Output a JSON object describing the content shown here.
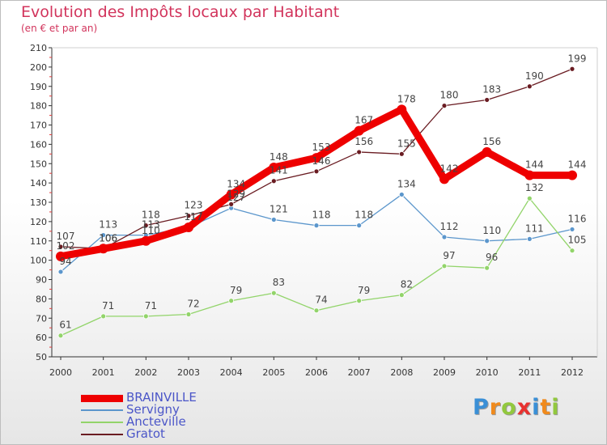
{
  "chart_data": {
    "type": "line",
    "title": "Evolution des Impôts locaux par Habitant",
    "subtitle": "(en € et par an)",
    "xlabel": "",
    "ylabel": "",
    "x": [
      "2000",
      "2001",
      "2002",
      "2003",
      "2004",
      "2005",
      "2006",
      "2007",
      "2008",
      "2009",
      "2010",
      "2011",
      "2012"
    ],
    "ylim": [
      50,
      210
    ],
    "yticks": [
      50,
      60,
      70,
      80,
      90,
      100,
      110,
      120,
      130,
      140,
      150,
      160,
      170,
      180,
      190,
      200,
      210
    ],
    "grid": false,
    "legend_position": "bottom-left",
    "series": [
      {
        "name": "BRAINVILLE",
        "color": "#ee0000",
        "values": [
          102,
          106,
          110,
          117,
          134,
          148,
          153,
          167,
          178,
          142,
          156,
          144,
          144
        ]
      },
      {
        "name": "Servigny",
        "color": "#5b96cc",
        "values": [
          94,
          113,
          113,
          117,
          127,
          121,
          118,
          118,
          134,
          112,
          110,
          111,
          116
        ]
      },
      {
        "name": "Ancteville",
        "color": "#92d46a",
        "values": [
          61,
          71,
          71,
          72,
          79,
          83,
          74,
          79,
          82,
          97,
          96,
          132,
          105
        ]
      },
      {
        "name": "Gratot",
        "color": "#6a1c22",
        "values": [
          107,
          106,
          118,
          123,
          129,
          141,
          146,
          156,
          155,
          180,
          183,
          190,
          199
        ]
      }
    ],
    "data_labels": [
      {
        "x": "2000",
        "y": 107,
        "text": "107"
      },
      {
        "x": "2000",
        "y": 102,
        "text": "102"
      },
      {
        "x": "2000",
        "y": 94,
        "text": "94"
      },
      {
        "x": "2000",
        "y": 61,
        "text": "61"
      },
      {
        "x": "2001",
        "y": 113,
        "text": "113"
      },
      {
        "x": "2001",
        "y": 106,
        "text": "106"
      },
      {
        "x": "2001",
        "y": 106,
        "text": "106"
      },
      {
        "x": "2001",
        "y": 71,
        "text": "71"
      },
      {
        "x": "2002",
        "y": 118,
        "text": "118"
      },
      {
        "x": "2002",
        "y": 113,
        "text": "113"
      },
      {
        "x": "2002",
        "y": 110,
        "text": "110"
      },
      {
        "x": "2002",
        "y": 71,
        "text": "71"
      },
      {
        "x": "2003",
        "y": 123,
        "text": "123"
      },
      {
        "x": "2003",
        "y": 117,
        "text": "117"
      },
      {
        "x": "2003",
        "y": 117,
        "text": "117"
      },
      {
        "x": "2003",
        "y": 72,
        "text": "72"
      },
      {
        "x": "2004",
        "y": 134,
        "text": "134"
      },
      {
        "x": "2004",
        "y": 129,
        "text": "129"
      },
      {
        "x": "2004",
        "y": 127,
        "text": "127"
      },
      {
        "x": "2004",
        "y": 79,
        "text": "79"
      },
      {
        "x": "2005",
        "y": 148,
        "text": "148"
      },
      {
        "x": "2005",
        "y": 141,
        "text": "141"
      },
      {
        "x": "2005",
        "y": 121,
        "text": "121"
      },
      {
        "x": "2005",
        "y": 83,
        "text": "83"
      },
      {
        "x": "2006",
        "y": 153,
        "text": "153"
      },
      {
        "x": "2006",
        "y": 146,
        "text": "146"
      },
      {
        "x": "2006",
        "y": 118,
        "text": "118"
      },
      {
        "x": "2006",
        "y": 74,
        "text": "74"
      },
      {
        "x": "2007",
        "y": 167,
        "text": "167"
      },
      {
        "x": "2007",
        "y": 156,
        "text": "156"
      },
      {
        "x": "2007",
        "y": 118,
        "text": "118"
      },
      {
        "x": "2007",
        "y": 79,
        "text": "79"
      },
      {
        "x": "2008",
        "y": 178,
        "text": "178"
      },
      {
        "x": "2008",
        "y": 155,
        "text": "155"
      },
      {
        "x": "2008",
        "y": 134,
        "text": "134"
      },
      {
        "x": "2008",
        "y": 82,
        "text": "82"
      },
      {
        "x": "2009",
        "y": 180,
        "text": "180"
      },
      {
        "x": "2009",
        "y": 142,
        "text": "142"
      },
      {
        "x": "2009",
        "y": 112,
        "text": "112"
      },
      {
        "x": "2009",
        "y": 97,
        "text": "97"
      },
      {
        "x": "2010",
        "y": 183,
        "text": "183"
      },
      {
        "x": "2010",
        "y": 156,
        "text": "156"
      },
      {
        "x": "2010",
        "y": 110,
        "text": "110"
      },
      {
        "x": "2010",
        "y": 96,
        "text": "96"
      },
      {
        "x": "2011",
        "y": 190,
        "text": "190"
      },
      {
        "x": "2011",
        "y": 144,
        "text": "144"
      },
      {
        "x": "2011",
        "y": 132,
        "text": "132"
      },
      {
        "x": "2011",
        "y": 111,
        "text": "111"
      },
      {
        "x": "2012",
        "y": 199,
        "text": "199"
      },
      {
        "x": "2012",
        "y": 144,
        "text": "144"
      },
      {
        "x": "2012",
        "y": 116,
        "text": "116"
      },
      {
        "x": "2012",
        "y": 105,
        "text": "105"
      }
    ]
  },
  "logo": {
    "text": "Proxiti",
    "letters": [
      {
        "ch": "P",
        "color": "#3a8fd6"
      },
      {
        "ch": "r",
        "color": "#f08a1c"
      },
      {
        "ch": "o",
        "color": "#92c83e"
      },
      {
        "ch": "x",
        "color": "#e8312f"
      },
      {
        "ch": "i",
        "color": "#3a8fd6"
      },
      {
        "ch": "t",
        "color": "#f08a1c"
      },
      {
        "ch": "i",
        "color": "#92c83e"
      }
    ]
  }
}
